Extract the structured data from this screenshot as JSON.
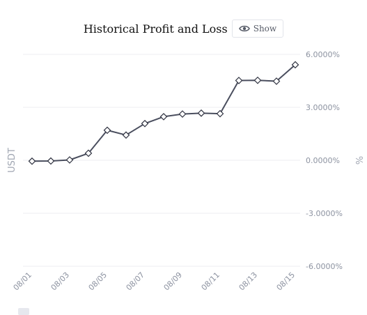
{
  "header": {
    "title": "Historical Profit and Loss",
    "show_label": "Show"
  },
  "chart_data": {
    "type": "line",
    "xlabel": "",
    "ylabel_left": "USDT",
    "ylabel_right": "%",
    "categories": [
      "08/01",
      "08/02",
      "08/03",
      "08/04",
      "08/05",
      "08/06",
      "08/07",
      "08/08",
      "08/09",
      "08/10",
      "08/11",
      "08/12",
      "08/13",
      "08/14",
      "08/15"
    ],
    "x_tick_labels": [
      "08/01",
      "08/03",
      "08/05",
      "08/07",
      "08/09",
      "08/11",
      "08/13",
      "08/15"
    ],
    "series": [
      {
        "values": [
          -0.05,
          -0.04,
          0.02,
          0.4,
          1.7,
          1.43,
          2.08,
          2.47,
          2.62,
          2.67,
          2.64,
          4.52,
          4.53,
          4.48,
          5.41
        ]
      }
    ],
    "ylim": [
      -6,
      6
    ],
    "y_ticks": [
      6,
      3,
      0,
      -3,
      -6
    ],
    "y_tick_labels": [
      "6.0000%",
      "3.0000%",
      "0.0000%",
      "-3.0000%",
      "-6.0000%"
    ],
    "grid": true,
    "colors": {
      "line": "#4a4e5e",
      "point_fill": "#ffffff",
      "point_stroke": "#2f3240",
      "grid": "#eceef2",
      "tick_text": "#8c92a0"
    }
  }
}
